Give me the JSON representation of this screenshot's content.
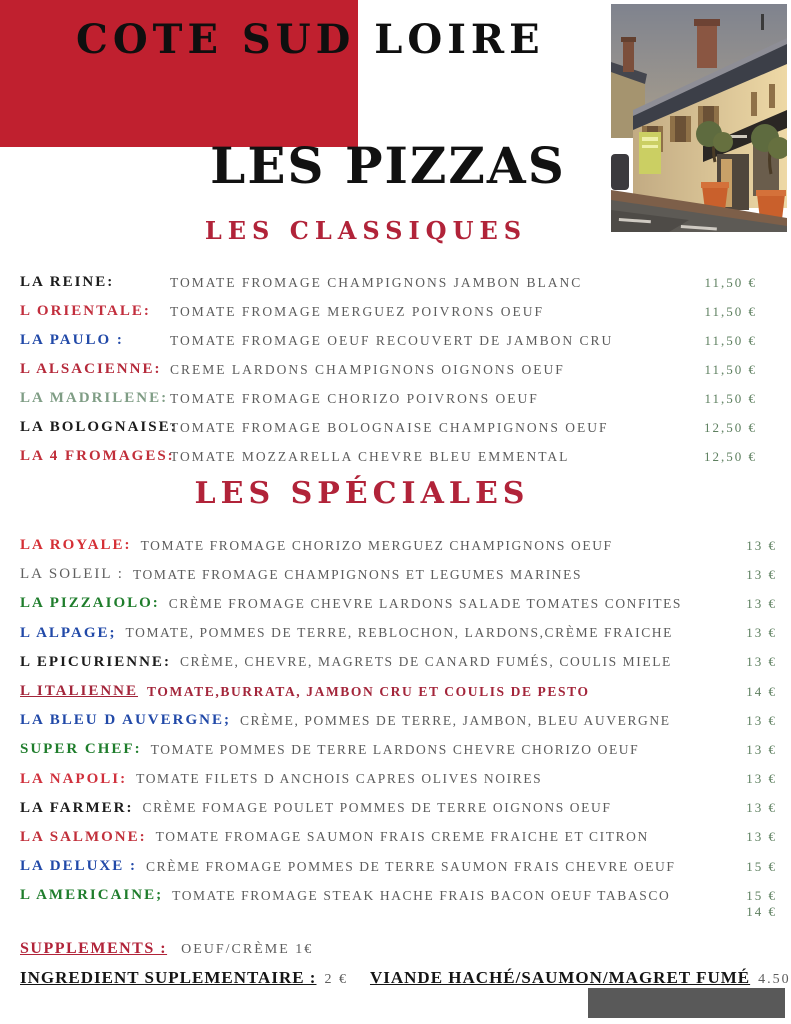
{
  "header": {
    "brand": "COTE SUD LOIRE",
    "title": "LES PIZZAS"
  },
  "classiques": {
    "title": "LES CLASSIQUES",
    "items": [
      {
        "name": "LA REINE:",
        "color": "#1b1b1b",
        "desc": "TOMATE FROMAGE CHAMPIGNONS JAMBON BLANC",
        "price": "11,50 €"
      },
      {
        "name": "L ORIENTALE:",
        "color": "#c22e3d",
        "desc": "TOMATE FROMAGE MERGUEZ POIVRONS OEUF",
        "price": "11,50 €"
      },
      {
        "name": "LA PAULO :",
        "color": "#2149a8",
        "desc": "TOMATE FROMAGE OEUF RECOUVERT DE JAMBON CRU",
        "price": "11,50 €"
      },
      {
        "name": "L ALSACIENNE:",
        "color": "#b5293a",
        "desc": "CREME LARDONS CHAMPIGNONS OIGNONS OEUF",
        "price": "11,50 €"
      },
      {
        "name": "LA MADRILENE:",
        "color": "#7f9d85",
        "desc": "TOMATE FROMAGE CHORIZO POIVRONS OEUF",
        "price": "11,50 €"
      },
      {
        "name": "LA BOLOGNAISE:",
        "color": "#1b1b1b",
        "desc": "TOMATE FROMAGE BOLOGNAISE CHAMPIGNONS OEUF",
        "price": "12,50 €"
      },
      {
        "name": "LA 4 FROMAGES:",
        "color": "#c12f3a",
        "desc": "TOMATE MOZZARELLA CHEVRE BLEU EMMENTAL",
        "price": "12,50 €"
      }
    ]
  },
  "speciales": {
    "title": "LES SPÉCIALES",
    "items": [
      {
        "name": "LA ROYALE:",
        "color": "#d52f35",
        "desc": "TOMATE FROMAGE CHORIZO MERGUEZ CHAMPIGNONS OEUF",
        "price": "13 €"
      },
      {
        "name": "LA SOLEIL :",
        "color": "#5f5f5f",
        "name_bold": false,
        "desc": "TOMATE FROMAGE CHAMPIGNONS ET LEGUMES MARINES",
        "price": "13 €"
      },
      {
        "name": "LA PIZZAIOLO:",
        "color": "#1f7d2c",
        "desc": "CRÈME FROMAGE CHEVRE LARDONS SALADE TOMATES CONFITES",
        "price": "13 €"
      },
      {
        "name": "L ALPAGE;",
        "color": "#2149a8",
        "desc": "TOMATE, POMMES DE TERRE, REBLOCHON, LARDONS,CRÈME FRAICHE",
        "price": "13 €"
      },
      {
        "name": "L EPICURIENNE:",
        "color": "#1b1b1b",
        "desc": "CRÈME, CHEVRE, MAGRETS DE CANARD FUMÉS, COULIS MIELE",
        "price": "13 €"
      },
      {
        "name": "L ITALIENNE",
        "color": "#a3253a",
        "underline": true,
        "desc": "TOMATE,BURRATA,  JAMBON CRU  ET COULIS DE PESTO",
        "desc_color": "#a3253a",
        "price": "14 €"
      },
      {
        "name": "LA BLEU D AUVERGNE;",
        "color": "#2149a8",
        "desc": "CRÈME, POMMES DE TERRE, JAMBON, BLEU AUVERGNE",
        "price": "13 €"
      },
      {
        "name": "SUPER CHEF:",
        "color": "#1f7d2c",
        "desc": "TOMATE POMMES DE TERRE LARDONS CHEVRE CHORIZO OEUF",
        "price": "13 €"
      },
      {
        "name": "LA NAPOLI:",
        "color": "#d0313d",
        "desc": "TOMATE FILETS D ANCHOIS CAPRES OLIVES NOIRES",
        "price": "13 €"
      },
      {
        "name": "LA FARMER:",
        "color": "#1b1b1b",
        "desc": "CRÈME FOMAGE  POULET POMMES DE TERRE OIGNONS OEUF",
        "price": "13 €"
      },
      {
        "name": "LA SALMONE:",
        "color": "#c12f3a",
        "desc": "TOMATE FROMAGE SAUMON FRAIS CREME FRAICHE ET CITRON",
        "price": "13 €"
      },
      {
        "name": "LA DELUXE :",
        "color": "#2149a8",
        "desc": "CRÈME FROMAGE POMMES DE TERRE SAUMON FRAIS CHEVRE OEUF",
        "price": "15 €"
      },
      {
        "name": "L AMERICAINE;",
        "color": "#1f7d2c",
        "desc": "TOMATE FROMAGE STEAK HACHE FRAIS BACON OEUF TABASCO",
        "price": "15 €"
      }
    ],
    "extra_price": "14 €"
  },
  "footer": {
    "supplements_label": "SUPPLEMENTS :",
    "supplements_text": "OEUF/CRÈME 1€",
    "ingredient_label": "INGREDIENT SUPLEMENTAIRE :",
    "ingredient_price": "2 €",
    "viande_label": "VIANDE HACHÉ/SAUMON/MAGRET FUMÉ",
    "viande_price": "4.50 €"
  },
  "colors": {
    "red_block": "#c0202f",
    "section_heading": "#b12339",
    "description_text": "#5c5c5c",
    "price_green": "#5d7f5f",
    "footer_rect_gray": "#595959"
  }
}
